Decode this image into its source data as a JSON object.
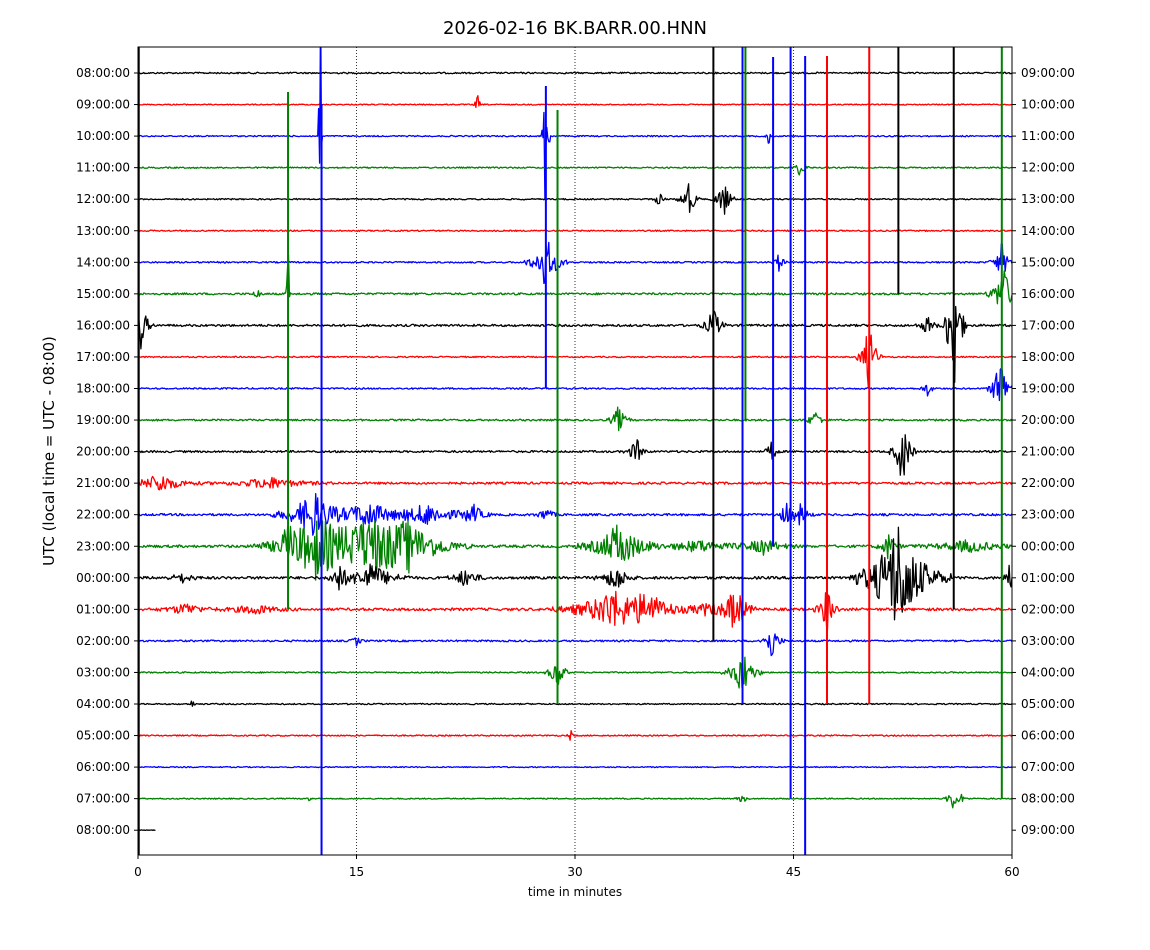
{
  "chart_data": {
    "type": "line",
    "title": "2026-02-16 BK.BARR.00.HNN",
    "xlabel": "time in minutes",
    "ylabel": "UTC (local time = UTC - 08:00)",
    "xlim": [
      0,
      60
    ],
    "x_ticks": [
      0,
      15,
      30,
      45,
      60
    ],
    "x_tick_labels": [
      "0",
      "15",
      "30",
      "45",
      "60"
    ],
    "grid": "vertical dotted lines at 15, 30, 45",
    "left_tick_labels": [
      "08:00:00",
      "09:00:00",
      "10:00:00",
      "11:00:00",
      "12:00:00",
      "13:00:00",
      "14:00:00",
      "15:00:00",
      "16:00:00",
      "17:00:00",
      "18:00:00",
      "19:00:00",
      "20:00:00",
      "21:00:00",
      "22:00:00",
      "23:00:00",
      "00:00:00",
      "01:00:00",
      "02:00:00",
      "03:00:00",
      "04:00:00",
      "05:00:00",
      "06:00:00",
      "07:00:00",
      "08:00:00"
    ],
    "right_tick_labels": [
      "09:00:00",
      "10:00:00",
      "11:00:00",
      "12:00:00",
      "13:00:00",
      "14:00:00",
      "15:00:00",
      "16:00:00",
      "17:00:00",
      "18:00:00",
      "19:00:00",
      "20:00:00",
      "21:00:00",
      "22:00:00",
      "23:00:00",
      "00:00:00",
      "01:00:00",
      "02:00:00",
      "03:00:00",
      "04:00:00",
      "05:00:00",
      "06:00:00",
      "07:00:00",
      "08:00:00",
      "09:00:00"
    ],
    "colors": [
      "#000000",
      "#ff0000",
      "#0000ff",
      "#008000"
    ],
    "last_trace_end_minute": 1.2,
    "traces": [
      {
        "noise": 0.35,
        "events": []
      },
      {
        "noise": 0.25,
        "events": [
          [
            23.3,
            12,
            0.1
          ]
        ]
      },
      {
        "noise": 0.3,
        "events": [
          [
            12.5,
            270,
            0.05
          ],
          [
            28.0,
            140,
            0.1
          ],
          [
            43.3,
            12,
            0.1
          ]
        ]
      },
      {
        "noise": 0.3,
        "events": [
          [
            45.5,
            12,
            0.2
          ]
        ]
      },
      {
        "noise": 0.3,
        "events": [
          [
            35.8,
            8,
            0.2
          ],
          [
            37.8,
            20,
            0.3
          ],
          [
            40.2,
            20,
            0.3
          ]
        ]
      },
      {
        "noise": 0.3,
        "events": []
      },
      {
        "noise": 0.35,
        "events": [
          [
            28.0,
            30,
            0.5
          ],
          [
            44.0,
            10,
            0.2
          ],
          [
            59.3,
            20,
            0.3
          ]
        ]
      },
      {
        "noise": 0.45,
        "events": [
          [
            10.3,
            110,
            0.05
          ],
          [
            8.2,
            15,
            0.1
          ],
          [
            59.4,
            30,
            0.4
          ]
        ]
      },
      {
        "noise": 0.5,
        "events": [
          [
            0.2,
            25,
            0.3
          ],
          [
            39.5,
            20,
            0.3
          ],
          [
            54.2,
            10,
            0.3
          ],
          [
            56.0,
            80,
            0.3
          ]
        ]
      },
      {
        "noise": 0.3,
        "events": [
          [
            50.2,
            40,
            0.3
          ]
        ]
      },
      {
        "noise": 0.35,
        "events": [
          [
            59.2,
            40,
            0.3
          ],
          [
            54.2,
            8,
            0.2
          ]
        ]
      },
      {
        "noise": 0.4,
        "events": [
          [
            33.0,
            15,
            0.3
          ],
          [
            46.5,
            10,
            0.3
          ]
        ]
      },
      {
        "noise": 0.45,
        "events": [
          [
            34.2,
            15,
            0.3
          ],
          [
            43.5,
            12,
            0.2
          ],
          [
            52.5,
            40,
            0.3
          ]
        ]
      },
      {
        "noise": 0.5,
        "events": [
          [
            1.5,
            10,
            1.0
          ],
          [
            9.0,
            6,
            1.5
          ]
        ]
      },
      {
        "noise": 0.5,
        "events": [
          [
            12.0,
            25,
            1.0
          ],
          [
            15.8,
            15,
            1.0
          ],
          [
            19.8,
            12,
            1.2
          ],
          [
            23.0,
            10,
            0.5
          ],
          [
            28.0,
            8,
            0.3
          ],
          [
            44.5,
            12,
            0.3
          ],
          [
            45.5,
            12,
            0.3
          ]
        ]
      },
      {
        "noise": 0.6,
        "events": [
          [
            10.3,
            15,
            0.3
          ],
          [
            12.2,
            30,
            1.5
          ],
          [
            16.0,
            25,
            2.0
          ],
          [
            18.5,
            20,
            1.5
          ],
          [
            33.0,
            25,
            1.0
          ],
          [
            38.5,
            6,
            1.5
          ],
          [
            43.0,
            8,
            0.8
          ],
          [
            51.5,
            15,
            0.3
          ],
          [
            57.0,
            6,
            1.5
          ]
        ]
      },
      {
        "noise": 0.6,
        "events": [
          [
            3.0,
            5,
            0.5
          ],
          [
            13.8,
            15,
            0.3
          ],
          [
            16.0,
            15,
            1.0
          ],
          [
            22.5,
            10,
            0.5
          ],
          [
            32.8,
            15,
            0.5
          ],
          [
            52.2,
            60,
            1.2
          ],
          [
            59.8,
            15,
            0.2
          ]
        ]
      },
      {
        "noise": 0.6,
        "events": [
          [
            3.3,
            6,
            0.8
          ],
          [
            8.0,
            5,
            1.0
          ],
          [
            32.5,
            20,
            1.5
          ],
          [
            35.0,
            15,
            1.0
          ],
          [
            39.0,
            6,
            1.0
          ],
          [
            41.0,
            25,
            0.5
          ],
          [
            47.3,
            25,
            0.3
          ]
        ]
      },
      {
        "noise": 0.4,
        "events": [
          [
            15.0,
            5,
            0.2
          ],
          [
            43.5,
            20,
            0.3
          ]
        ]
      },
      {
        "noise": 0.3,
        "events": [
          [
            28.8,
            20,
            0.3
          ],
          [
            41.5,
            25,
            0.5
          ]
        ]
      },
      {
        "noise": 0.3,
        "events": [
          [
            3.7,
            5,
            0.1
          ]
        ]
      },
      {
        "noise": 0.3,
        "events": [
          [
            29.7,
            6,
            0.1
          ]
        ]
      },
      {
        "noise": 0.25,
        "events": []
      },
      {
        "noise": 0.25,
        "events": [
          [
            11.7,
            5,
            0.1
          ],
          [
            41.5,
            5,
            0.2
          ],
          [
            55.9,
            14,
            0.2
          ],
          [
            56.5,
            5,
            0.2
          ]
        ]
      },
      {
        "noise": 0.15,
        "events": []
      }
    ],
    "spikes": [
      {
        "row": 0,
        "x": 0.05,
        "top": 0,
        "bottom": 25,
        "color": "#000000"
      },
      {
        "row": 2,
        "x": 12.6,
        "top": 104,
        "bottom": 25,
        "color": "#0000ff"
      },
      {
        "row": 7,
        "x": 10.3,
        "top": 92,
        "bottom": 17,
        "color": "#008000"
      },
      {
        "row": 6,
        "x": 28.0,
        "top": 86,
        "bottom": 10,
        "color": "#0000ff"
      },
      {
        "row": 3,
        "x": 28.8,
        "top": 110,
        "bottom": 20,
        "color": "#008000"
      },
      {
        "row": 0,
        "x": 39.5,
        "top": 0,
        "bottom": 18,
        "color": "#000000"
      },
      {
        "row": 0,
        "x": 41.5,
        "top": 0,
        "bottom": 20,
        "color": "#0000ff"
      },
      {
        "row": 12,
        "x": 41.7,
        "top": 14,
        "bottom": 11,
        "color": "#008000"
      },
      {
        "row": 11,
        "x": 43.6,
        "top": 57,
        "bottom": 15,
        "color": "#0000ff"
      },
      {
        "row": 0,
        "x": 44.8,
        "top": 15,
        "bottom": 23,
        "color": "#0000ff"
      },
      {
        "row": 3,
        "x": 45.8,
        "top": 56,
        "bottom": 25,
        "color": "#0000ff"
      },
      {
        "row": 4,
        "x": 47.3,
        "top": 56,
        "bottom": 20,
        "color": "#ff0000"
      },
      {
        "row": 1,
        "x": 50.2,
        "top": 33,
        "bottom": 20,
        "color": "#ff0000"
      },
      {
        "row": 11,
        "x": 52.2,
        "top": 12,
        "bottom": 7,
        "color": "#000000"
      },
      {
        "row": 0,
        "x": 56.0,
        "top": 0,
        "bottom": 17,
        "color": "#000000"
      },
      {
        "row": 0,
        "x": 59.3,
        "top": 25,
        "bottom": 23,
        "color": "#008000"
      }
    ]
  }
}
